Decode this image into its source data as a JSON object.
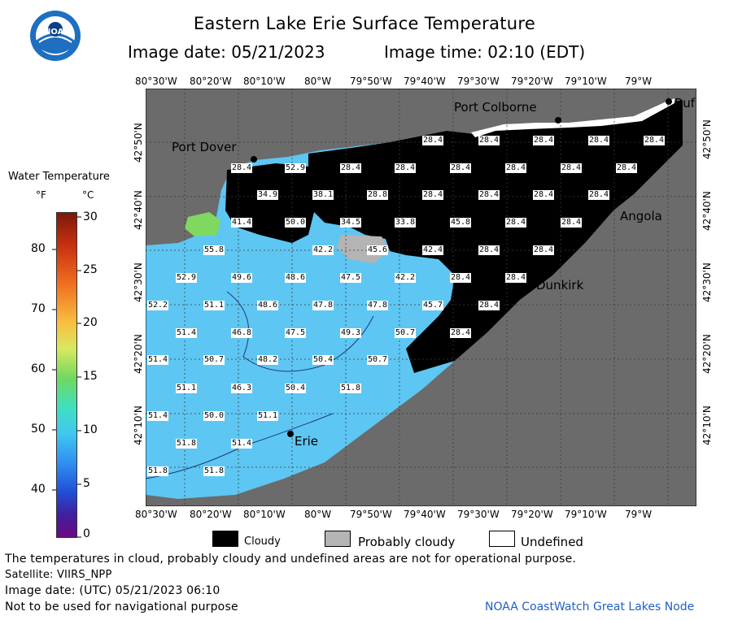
{
  "header": {
    "title": "Eastern Lake Erie Surface Temperature",
    "subtitle_date": "Image date: 05/21/2023",
    "subtitle_time": "Image time: 02:10 (EDT)",
    "logo_text": "NOAA"
  },
  "legend": {
    "title": "Water Temperature",
    "unit_f": "°F",
    "unit_c": "°C",
    "f_ticks": [
      "80",
      "70",
      "60",
      "50",
      "40"
    ],
    "c_ticks": [
      "30",
      "25",
      "20",
      "15",
      "10",
      "5",
      "0"
    ]
  },
  "axes": {
    "lon_labels": [
      "80°30'W",
      "80°20'W",
      "80°10'W",
      "80°W",
      "79°50'W",
      "79°40'W",
      "79°30'W",
      "79°20'W",
      "79°10'W",
      "79°W"
    ],
    "lat_labels": [
      "42°50'N",
      "42°40'N",
      "42°30'N",
      "42°20'N",
      "42°10'N"
    ]
  },
  "places": {
    "port_colborne": "Port Colborne",
    "port_dover": "Port Dover",
    "angola": "Angola",
    "dunkirk": "Dunkirk",
    "erie": "Erie",
    "buffalo": "Buf"
  },
  "temps": {
    "t1": "28.4",
    "t2": "28.4",
    "t3": "28.4",
    "t4": "28.4",
    "t5": "28.4",
    "t6": "28.4",
    "t7": "52.9",
    "t8": "28.4",
    "t9": "28.4",
    "t10": "28.4",
    "t11": "28.4",
    "t12": "28.4",
    "t13": "28.4",
    "t14": "34.9",
    "t15": "38.1",
    "t16": "28.8",
    "t17": "28.4",
    "t18": "28.4",
    "t19": "28.4",
    "t20": "28.4",
    "t21": "41.4",
    "t22": "50.0",
    "t23": "34.5",
    "t24": "33.8",
    "t25": "45.8",
    "t26": "28.4",
    "t27": "28.4",
    "t28": "55.8",
    "t29": "42.2",
    "t30": "45.6",
    "t31": "42.4",
    "t32": "28.4",
    "t33": "28.4",
    "t34": "52.9",
    "t35": "49.6",
    "t36": "48.6",
    "t37": "47.5",
    "t38": "42.2",
    "t39": "28.4",
    "t40": "28.4",
    "t41": "52.2",
    "t42": "51.1",
    "t43": "48.6",
    "t44": "47.8",
    "t45": "47.8",
    "t46": "45.7",
    "t47": "28.4",
    "t48": "51.4",
    "t49": "46.8",
    "t50": "47.5",
    "t51": "49.3",
    "t52": "50.7",
    "t53": "28.4",
    "t54": "51.4",
    "t55": "50.7",
    "t56": "48.2",
    "t57": "50.4",
    "t58": "50.7",
    "t59": "51.1",
    "t60": "46.3",
    "t61": "50.4",
    "t62": "51.8",
    "t63": "51.4",
    "t64": "50.0",
    "t65": "51.1",
    "t66": "51.8",
    "t67": "51.4",
    "t68": "51.8",
    "t69": "51.8"
  },
  "key": {
    "cloudy": "Cloudy",
    "probably_cloudy": "Probably cloudy",
    "undefined": "Undefined"
  },
  "footer": {
    "disclaimer": "The temperatures in cloud, probably cloudy and undefined areas are not for operational purpose.",
    "satellite": "Satellite: VIIRS_NPP",
    "utc_date": "Image date: (UTC) 05/21/2023  06:10",
    "nav_warning": "Not to be used for navigational purpose",
    "credit": "NOAA CoastWatch Great Lakes Node"
  },
  "colors": {
    "land": "#6b6b6b",
    "water": "#5ec6f2",
    "cloud": "#000000",
    "probably_cloudy": "#b4b4b4",
    "undefined": "#ffffff",
    "credit": "#1f5fc8"
  }
}
